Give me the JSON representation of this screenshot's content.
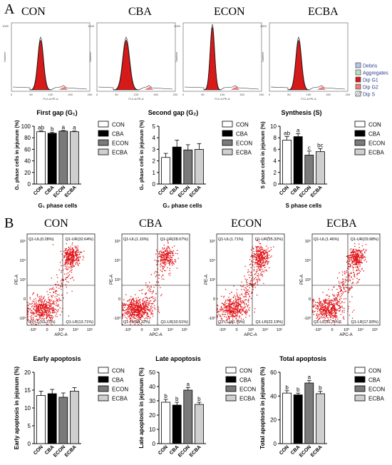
{
  "panel_a_label": "A",
  "panel_b_label": "B",
  "groups": [
    "CON",
    "CBA",
    "ECON",
    "ECBA"
  ],
  "histogram": {
    "xlabel": "FL2-A:PE-A",
    "ylabel": "Number",
    "ymax_labels": [
      "1000",
      "1000",
      "4000",
      "2000"
    ],
    "xticks": [
      "0",
      "50",
      "100",
      "150",
      "200"
    ],
    "legend": [
      "Debris",
      "Aggregates",
      "Dip G1",
      "Dip G2",
      "Dip S"
    ],
    "legend_colors": [
      "#b8c4e8",
      "#b8e0c0",
      "#d61a1a",
      "#e88080",
      "#ffffff"
    ]
  },
  "cellcycle_legend": [
    "CON",
    "CBA",
    "ECON",
    "ECBA"
  ],
  "bar_colors": [
    "#ffffff",
    "#000000",
    "#7a7a7a",
    "#cfcfcf"
  ],
  "flow": {
    "xlabel": "APC-A",
    "ylabel": "PE-A",
    "quadrants": [
      {
        "ul": "Q1-UL(0.28%)",
        "ur": "Q1-UR(32.64%)",
        "ll": "Q1-LL(53.37%)",
        "lr": "Q1-LR(13.71%)"
      },
      {
        "ul": "Q1-UL(1.10%)",
        "ur": "Q1-UR(28.07%)",
        "ll": "Q1-LL(60.32%)",
        "lr": "Q1-LR(10.51%)"
      },
      {
        "ul": "Q1-UL(1.71%)",
        "ur": "Q1-UR(35.32%)",
        "ll": "Q1-LL(40.79%)",
        "lr": "Q1-LR(22.19%)"
      },
      {
        "ul": "Q1-UL(1.46%)",
        "ur": "Q1-UR(29.98%)",
        "ll": "Q1-LL(50.75%)",
        "lr": "Q1-LR(17.83%)"
      }
    ]
  },
  "chart_data": [
    {
      "type": "bar",
      "title": "First gap (G₁)",
      "ylabel": "G₁ phase cells in jejunum (%)",
      "xlabel": "G₁ phase cells",
      "categories": [
        "CON",
        "CBA",
        "ECON",
        "ECBA"
      ],
      "values": [
        90.5,
        87.8,
        91.5,
        90.5
      ],
      "errors": [
        1.5,
        1.5,
        1.2,
        1.2
      ],
      "letters": [
        "ab",
        "b",
        "a",
        "a"
      ],
      "ylim": [
        0,
        100
      ],
      "yticks": [
        0,
        20,
        40,
        60,
        80,
        100
      ]
    },
    {
      "type": "bar",
      "title": "Second gap (G₂)",
      "ylabel": "G₂ phase cells in jejunum (%)",
      "xlabel": "G₂ phase cells",
      "categories": [
        "CON",
        "CBA",
        "ECON",
        "ECBA"
      ],
      "values": [
        2.3,
        3.2,
        2.95,
        3.0
      ],
      "errors": [
        0.35,
        0.6,
        0.45,
        0.5
      ],
      "letters": [
        "",
        "",
        "",
        ""
      ],
      "ylim": [
        0,
        5
      ],
      "yticks": [
        0,
        1,
        2,
        3,
        4,
        5
      ]
    },
    {
      "type": "bar",
      "title": "Synthesis (S)",
      "ylabel": "S phase cells in jejunum (%)",
      "xlabel": "S phase cells",
      "categories": [
        "CON",
        "CBA",
        "ECON",
        "ECBA"
      ],
      "values": [
        7.6,
        8.2,
        5.0,
        5.6
      ],
      "errors": [
        0.6,
        0.5,
        0.7,
        0.5
      ],
      "letters": [
        "ab",
        "a",
        "c",
        "bc"
      ],
      "ylim": [
        0,
        10
      ],
      "yticks": [
        0,
        2,
        4,
        6,
        8,
        10
      ]
    },
    {
      "type": "bar",
      "title": "Early apoptosis",
      "ylabel": "Early apoptosis in jejunum (%)",
      "xlabel": "",
      "categories": [
        "CON",
        "CBA",
        "ECON",
        "ECBA"
      ],
      "values": [
        13.5,
        14.0,
        13.0,
        14.7
      ],
      "errors": [
        1.2,
        1.2,
        1.2,
        1.0
      ],
      "letters": [
        "",
        "",
        "",
        ""
      ],
      "ylim": [
        0,
        20
      ],
      "yticks": [
        0,
        5,
        10,
        15,
        20
      ]
    },
    {
      "type": "bar",
      "title": "Late apoptosis",
      "ylabel": "Late apoptosis in jejunum (%)",
      "xlabel": "",
      "categories": [
        "CON",
        "CBA",
        "ECON",
        "ECBA"
      ],
      "values": [
        29.0,
        27.0,
        37.5,
        27.5
      ],
      "errors": [
        2.0,
        2.0,
        1.8,
        1.5
      ],
      "letters": [
        "b",
        "b",
        "a",
        "b"
      ],
      "ylim": [
        0,
        50
      ],
      "yticks": [
        0,
        10,
        20,
        30,
        40,
        50
      ]
    },
    {
      "type": "bar",
      "title": "Total apoptosis",
      "ylabel": "Total apoptosis in jejunum (%)",
      "xlabel": "",
      "categories": [
        "CON",
        "CBA",
        "ECON",
        "ECBA"
      ],
      "values": [
        42.5,
        41.0,
        51.0,
        42.0
      ],
      "errors": [
        2.0,
        1.5,
        2.0,
        2.0
      ],
      "letters": [
        "b",
        "b",
        "a",
        "b"
      ],
      "ylim": [
        0,
        60
      ],
      "yticks": [
        0,
        20,
        40,
        60
      ]
    }
  ]
}
